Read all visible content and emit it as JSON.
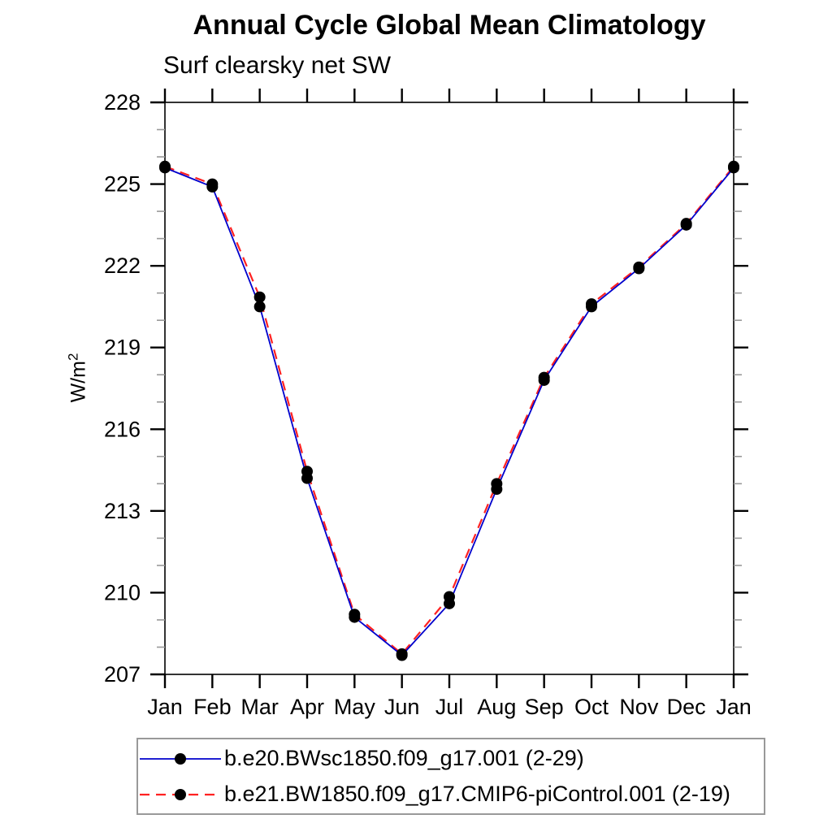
{
  "chart_data": {
    "type": "line",
    "title": "Annual Cycle Global Mean Climatology",
    "subtitle": "Surf clearsky net SW",
    "ylabel": "W/m²",
    "ylabel_base": "W/m",
    "ylabel_sup": "2",
    "categories": [
      "Jan",
      "Feb",
      "Mar",
      "Apr",
      "May",
      "Jun",
      "Jul",
      "Aug",
      "Sep",
      "Oct",
      "Nov",
      "Dec",
      "Jan"
    ],
    "ylim": [
      207,
      228
    ],
    "yticks_major": [
      207,
      210,
      213,
      216,
      219,
      222,
      225,
      228
    ],
    "ytick_minor_step": 1,
    "grid": false,
    "legend_position": "bottom-left",
    "axis_color": "#000000",
    "minor_tick_color": "#999999",
    "series": [
      {
        "name": "b.e20.BWsc1850.f09_g17.001 (2-29)",
        "color": "#0000cc",
        "line_style": "solid",
        "marker": "filled-circle",
        "marker_color": "#000000",
        "values": [
          225.6,
          224.9,
          220.5,
          214.2,
          209.1,
          207.7,
          209.6,
          213.8,
          217.8,
          220.5,
          221.9,
          223.5,
          225.6
        ]
      },
      {
        "name": "b.e21.BW1850.f09_g17.CMIP6-piControl.001 (2-19)",
        "color": "#ff2121",
        "line_style": "dashed",
        "marker": "filled-circle",
        "marker_color": "#000000",
        "values": [
          225.65,
          225.0,
          220.85,
          214.45,
          209.2,
          207.75,
          209.85,
          214.0,
          217.9,
          220.6,
          221.95,
          223.55,
          225.65
        ]
      }
    ]
  }
}
